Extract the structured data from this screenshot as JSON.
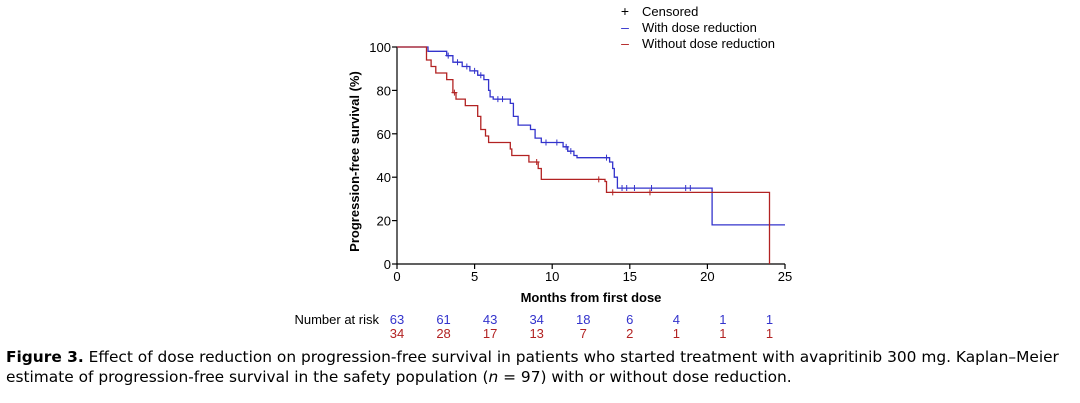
{
  "chart_data": {
    "type": "line",
    "subtype": "kaplan-meier",
    "title": "",
    "xlabel": "Months from first dose",
    "ylabel": "Progression-free survival (%)",
    "xlim": [
      0,
      25
    ],
    "ylim": [
      0,
      100
    ],
    "x_ticks": [
      0,
      5,
      10,
      15,
      20,
      25
    ],
    "y_ticks": [
      0,
      20,
      40,
      60,
      80,
      100
    ],
    "legend_position": "top-right",
    "legend": [
      {
        "symbol": "+",
        "label": "Censored",
        "color": "#000000"
      },
      {
        "symbol": "–",
        "label": "With dose reduction",
        "color": "#3333cc"
      },
      {
        "symbol": "–",
        "label": "Without dose reduction",
        "color": "#b22222"
      }
    ],
    "series": [
      {
        "name": "With dose reduction",
        "color": "#3333cc",
        "steps": [
          [
            0,
            100
          ],
          [
            1.8,
            100
          ],
          [
            2.0,
            98
          ],
          [
            3.2,
            96
          ],
          [
            3.6,
            93
          ],
          [
            4.2,
            91
          ],
          [
            4.7,
            89
          ],
          [
            5.2,
            87
          ],
          [
            5.6,
            85
          ],
          [
            5.9,
            80
          ],
          [
            6.0,
            77
          ],
          [
            6.2,
            76
          ],
          [
            7.3,
            74
          ],
          [
            7.5,
            68
          ],
          [
            7.8,
            64
          ],
          [
            8.6,
            62
          ],
          [
            8.9,
            58
          ],
          [
            9.3,
            56
          ],
          [
            10.7,
            54
          ],
          [
            11.0,
            52
          ],
          [
            11.4,
            50
          ],
          [
            11.6,
            49
          ],
          [
            13.7,
            47
          ],
          [
            13.9,
            44
          ],
          [
            14.0,
            40
          ],
          [
            14.2,
            35
          ],
          [
            20.3,
            35
          ],
          [
            20.3,
            18
          ],
          [
            25,
            18
          ]
        ],
        "censored": [
          [
            3.3,
            96
          ],
          [
            3.9,
            93
          ],
          [
            4.5,
            91
          ],
          [
            5.0,
            89
          ],
          [
            5.4,
            87
          ],
          [
            6.5,
            76
          ],
          [
            6.8,
            76
          ],
          [
            9.6,
            56
          ],
          [
            10.3,
            56
          ],
          [
            10.9,
            54
          ],
          [
            11.2,
            52
          ],
          [
            13.5,
            49
          ],
          [
            14.5,
            35
          ],
          [
            14.8,
            35
          ],
          [
            15.3,
            35
          ],
          [
            16.4,
            35
          ],
          [
            18.6,
            35
          ],
          [
            18.9,
            35
          ]
        ]
      },
      {
        "name": "Without dose reduction",
        "color": "#b22222",
        "steps": [
          [
            0,
            100
          ],
          [
            1.8,
            100
          ],
          [
            1.9,
            94
          ],
          [
            2.2,
            91
          ],
          [
            2.5,
            88
          ],
          [
            3.2,
            85
          ],
          [
            3.6,
            79
          ],
          [
            3.8,
            76
          ],
          [
            4.4,
            73
          ],
          [
            5.2,
            68
          ],
          [
            5.4,
            62
          ],
          [
            5.7,
            59
          ],
          [
            5.9,
            56
          ],
          [
            7.3,
            53
          ],
          [
            7.4,
            50
          ],
          [
            8.5,
            47
          ],
          [
            9.1,
            44
          ],
          [
            9.3,
            39
          ],
          [
            13.4,
            38
          ],
          [
            13.5,
            33
          ],
          [
            24.0,
            33
          ],
          [
            24.0,
            0
          ]
        ],
        "censored": [
          [
            3.7,
            79
          ],
          [
            9.0,
            47
          ],
          [
            13.0,
            39
          ],
          [
            13.9,
            33
          ],
          [
            16.3,
            33
          ]
        ]
      }
    ],
    "risk_table": {
      "label": "Number at risk",
      "x": [
        0,
        3,
        6,
        9,
        12,
        15,
        18,
        21,
        24
      ],
      "with": [
        "63",
        "61",
        "43",
        "34",
        "18",
        "6",
        "4",
        "1",
        "1"
      ],
      "without": [
        "34",
        "28",
        "17",
        "13",
        "7",
        "2",
        "1",
        "1",
        "1"
      ]
    }
  },
  "caption": {
    "label": "Figure 3.",
    "text": "Effect of dose reduction on progression-free survival in patients who started treatment with avapritinib 300 mg. Kaplan–Meier estimate of progression-free survival in the safety population (",
    "n_symbol": "n",
    "text_end": " = 97) with or without dose reduction."
  }
}
